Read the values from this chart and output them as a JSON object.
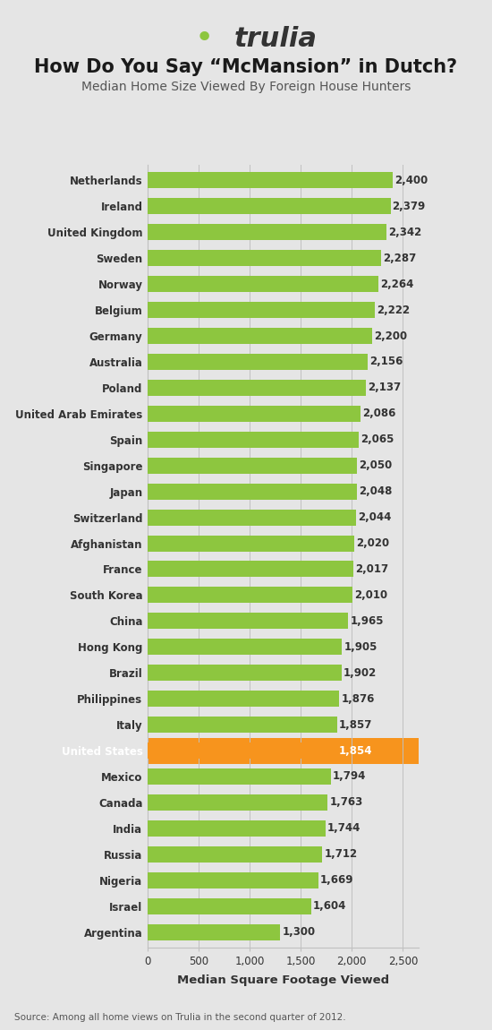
{
  "title_line1": "How Do You Say “McMansion” in Dutch?",
  "title_line2": "Median Home Size Viewed By Foreign House Hunters",
  "logo_text": "trulia",
  "xlabel": "Median Square Footage Viewed",
  "source": "Source: Among all home views on Trulia in the second quarter of 2012.",
  "background_color": "#e5e5e5",
  "bar_color_default": "#8dc63f",
  "bar_color_highlight": "#f7941d",
  "text_color_default": "#333333",
  "text_color_highlight": "#ffffff",
  "categories": [
    "Netherlands",
    "Ireland",
    "United Kingdom",
    "Sweden",
    "Norway",
    "Belgium",
    "Germany",
    "Australia",
    "Poland",
    "United Arab Emirates",
    "Spain",
    "Singapore",
    "Japan",
    "Switzerland",
    "Afghanistan",
    "France",
    "South Korea",
    "China",
    "Hong Kong",
    "Brazil",
    "Philippines",
    "Italy",
    "United States",
    "Mexico",
    "Canada",
    "India",
    "Russia",
    "Nigeria",
    "Israel",
    "Argentina"
  ],
  "values": [
    2400,
    2379,
    2342,
    2287,
    2264,
    2222,
    2200,
    2156,
    2137,
    2086,
    2065,
    2050,
    2048,
    2044,
    2020,
    2017,
    2010,
    1965,
    1905,
    1902,
    1876,
    1857,
    1854,
    1794,
    1763,
    1744,
    1712,
    1669,
    1604,
    1300
  ],
  "highlight_country": "United States",
  "xlim": [
    0,
    2650
  ],
  "xticks": [
    0,
    500,
    1000,
    1500,
    2000,
    2500
  ],
  "xtick_labels": [
    "0",
    "500",
    "1,000",
    "1,500",
    "2,000",
    "2,500"
  ],
  "grid_color": "#c0c0c0",
  "bar_height": 0.62,
  "title_fontsize": 15,
  "subtitle_fontsize": 10,
  "label_fontsize": 8.5,
  "value_fontsize": 8.5,
  "xlabel_fontsize": 9.5,
  "source_fontsize": 7.5,
  "logo_fontsize": 22,
  "logo_color": "#333333",
  "logo_dot_color": "#8dc63f",
  "logo_dot_char": "◖"
}
